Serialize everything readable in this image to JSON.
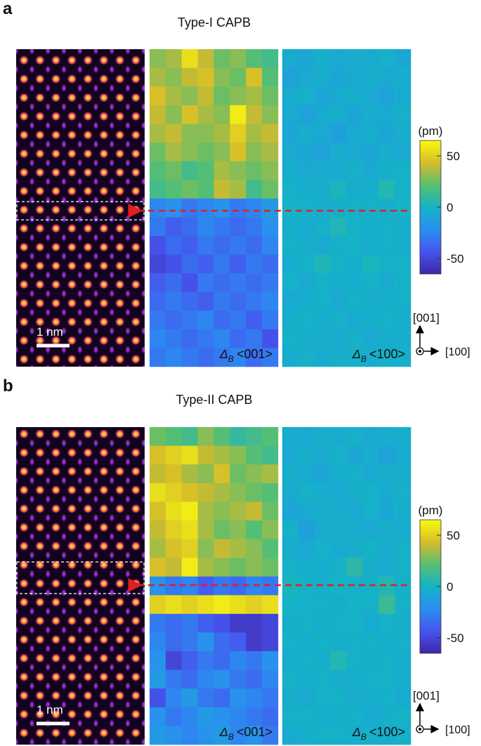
{
  "panels": [
    {
      "label": "a",
      "title": "Type-I CAPB",
      "scale_bar": "1 nm",
      "colorbar": {
        "unit": "(pm)",
        "clim": [
          -65,
          65
        ],
        "ticks": [
          50,
          0,
          -50
        ]
      },
      "axes": {
        "up": "[001]",
        "right": "[100]"
      },
      "maps": [
        {
          "symbol": "Δ",
          "subscript": "B",
          "direction": "<001>",
          "values": [
            [
              30,
              35,
              55,
              40,
              25,
              30,
              20,
              15
            ],
            [
              35,
              30,
              40,
              45,
              30,
              25,
              45,
              20
            ],
            [
              45,
              35,
              30,
              40,
              25,
              30,
              35,
              25
            ],
            [
              40,
              30,
              45,
              35,
              30,
              60,
              40,
              30
            ],
            [
              35,
              40,
              30,
              30,
              35,
              50,
              35,
              40
            ],
            [
              25,
              35,
              30,
              25,
              30,
              45,
              30,
              35
            ],
            [
              20,
              25,
              15,
              20,
              35,
              30,
              25,
              30
            ],
            [
              15,
              20,
              25,
              20,
              40,
              35,
              15,
              25
            ],
            [
              -25,
              -20,
              -30,
              -25,
              -20,
              -30,
              -25,
              -15
            ],
            [
              -30,
              -40,
              -35,
              -25,
              -30,
              -35,
              -30,
              -20
            ],
            [
              -45,
              -35,
              -40,
              -30,
              -35,
              -30,
              -35,
              -25
            ],
            [
              -50,
              -45,
              -35,
              -40,
              -30,
              -40,
              -30,
              -35
            ],
            [
              -40,
              -35,
              -45,
              -30,
              -35,
              -30,
              -35,
              -30
            ],
            [
              -35,
              -30,
              -35,
              -40,
              -30,
              -35,
              -30,
              -25
            ],
            [
              -30,
              -35,
              -30,
              -25,
              -35,
              -30,
              -40,
              -30
            ],
            [
              -25,
              -30,
              -35,
              -30,
              -25,
              -35,
              -30,
              -45
            ],
            [
              -30,
              -25,
              -30,
              -35,
              -30,
              -25,
              -35,
              -30
            ]
          ]
        },
        {
          "symbol": "Δ",
          "subscript": "B",
          "direction": "<100>",
          "values": [
            [
              -5,
              -8,
              -3,
              -6,
              -4,
              -5,
              -2,
              -7
            ],
            [
              -10,
              -6,
              -4,
              -8,
              -5,
              -3,
              -6,
              -4
            ],
            [
              -4,
              -2,
              -8,
              -5,
              -3,
              -6,
              -9,
              -5
            ],
            [
              -6,
              -10,
              -5,
              -3,
              -8,
              -4,
              -5,
              -2
            ],
            [
              -8,
              -4,
              -6,
              -12,
              -5,
              -3,
              -7,
              -4
            ],
            [
              -5,
              -7,
              -10,
              -4,
              -6,
              -8,
              -4,
              -6
            ],
            [
              -3,
              -6,
              -4,
              -5,
              -2,
              -6,
              -3,
              -1
            ],
            [
              -2,
              -4,
              -3,
              2,
              -4,
              -3,
              5,
              -2
            ],
            [
              0,
              -2,
              -4,
              -3,
              -1,
              -2,
              -3,
              0
            ],
            [
              -3,
              -5,
              -2,
              4,
              -1,
              -3,
              -2,
              -4
            ],
            [
              -1,
              -3,
              -5,
              -2,
              0,
              -4,
              -2,
              -3
            ],
            [
              -4,
              -2,
              3,
              -1,
              -3,
              2,
              -1,
              -2
            ],
            [
              -2,
              -6,
              -1,
              -3,
              -4,
              -2,
              -5,
              -1
            ],
            [
              -5,
              -3,
              -2,
              -6,
              -1,
              -4,
              -3,
              -2
            ],
            [
              -3,
              -1,
              -4,
              -2,
              -5,
              -3,
              -1,
              -4
            ],
            [
              -1,
              -4,
              -3,
              -5,
              -2,
              -6,
              -4,
              -3
            ],
            [
              -4,
              -2,
              -5,
              -3,
              -1,
              -4,
              -2,
              -3
            ]
          ]
        }
      ]
    },
    {
      "label": "b",
      "title": "Type-II CAPB",
      "scale_bar": "1 nm",
      "colorbar": {
        "unit": "(pm)",
        "clim": [
          -65,
          65
        ],
        "ticks": [
          50,
          0,
          -50
        ]
      },
      "axes": {
        "up": "[001]",
        "right": "[100]"
      },
      "maps": [
        {
          "symbol": "Δ",
          "subscript": "B",
          "direction": "<001>",
          "values": [
            [
              25,
              20,
              15,
              30,
              20,
              10,
              15,
              20
            ],
            [
              45,
              50,
              55,
              40,
              35,
              30,
              20,
              15
            ],
            [
              40,
              45,
              35,
              30,
              45,
              25,
              30,
              35
            ],
            [
              55,
              50,
              45,
              40,
              35,
              30,
              25,
              20
            ],
            [
              45,
              55,
              60,
              35,
              30,
              35,
              40,
              25
            ],
            [
              40,
              50,
              55,
              35,
              25,
              30,
              20,
              30
            ],
            [
              35,
              45,
              50,
              30,
              40,
              35,
              30,
              20
            ],
            [
              45,
              40,
              60,
              35,
              30,
              25,
              30,
              25
            ],
            [
              -20,
              -30,
              -25,
              -40,
              -30,
              -35,
              -25,
              -30
            ],
            [
              50,
              55,
              50,
              55,
              60,
              55,
              50,
              55
            ],
            [
              -30,
              -35,
              -30,
              -40,
              -45,
              -55,
              -55,
              -50
            ],
            [
              -25,
              -35,
              -30,
              -20,
              -35,
              -40,
              -55,
              -50
            ],
            [
              -20,
              -50,
              -40,
              -30,
              -35,
              -25,
              -30,
              -20
            ],
            [
              -15,
              -30,
              -35,
              -25,
              -20,
              -30,
              -35,
              -25
            ],
            [
              -45,
              -25,
              -15,
              -30,
              -35,
              -20,
              -25,
              -30
            ],
            [
              -20,
              -30,
              -25,
              -15,
              -20,
              -25,
              -30,
              -35
            ],
            [
              -15,
              -20,
              -25,
              -20,
              -15,
              -25,
              -20,
              -30
            ]
          ]
        },
        {
          "symbol": "Δ",
          "subscript": "B",
          "direction": "<100>",
          "values": [
            [
              -4,
              -6,
              -3,
              -5,
              -2,
              -6,
              -4,
              -3
            ],
            [
              -6,
              -3,
              -5,
              -2,
              -7,
              -4,
              -10,
              -5
            ],
            [
              -3,
              -5,
              -8,
              -4,
              -2,
              -6,
              -3,
              -4
            ],
            [
              -5,
              -2,
              -4,
              -6,
              -3,
              -1,
              -5,
              -2
            ],
            [
              -8,
              -5,
              -3,
              -4,
              -6,
              -2,
              -7,
              -3
            ],
            [
              -2,
              -12,
              -5,
              -3,
              -4,
              -6,
              -3,
              -5
            ],
            [
              -4,
              -6,
              -2,
              -5,
              -3,
              -1,
              -4,
              -2
            ],
            [
              -1,
              -3,
              -4,
              -2,
              8,
              -3,
              -5,
              -2
            ],
            [
              2,
              -1,
              -3,
              0,
              -2,
              -1,
              5,
              -2
            ],
            [
              0,
              -2,
              -1,
              -3,
              0,
              -2,
              12,
              -1
            ],
            [
              -3,
              -1,
              -4,
              -2,
              -1,
              -5,
              -2,
              -3
            ],
            [
              -2,
              -4,
              -1,
              -3,
              -2,
              -1,
              -4,
              -2
            ],
            [
              -4,
              -2,
              -3,
              5,
              -1,
              -3,
              -2,
              -4
            ],
            [
              -1,
              -3,
              -2,
              -4,
              -3,
              -2,
              -1,
              -3
            ],
            [
              -3,
              -5,
              -2,
              -1,
              -4,
              -3,
              -2,
              -5
            ],
            [
              -2,
              -1,
              -4,
              -3,
              -2,
              -5,
              -3,
              -1
            ],
            [
              -5,
              -3,
              -1,
              -2,
              -4,
              -2,
              -3,
              -2
            ]
          ]
        }
      ]
    }
  ]
}
